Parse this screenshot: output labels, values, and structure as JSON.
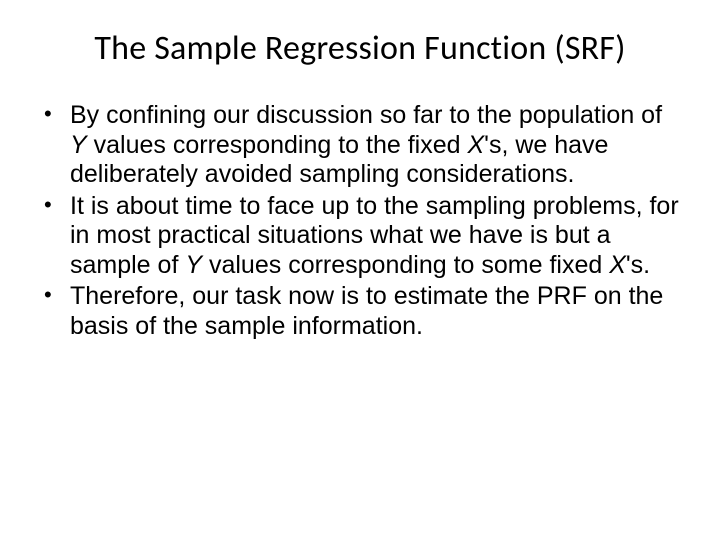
{
  "slide": {
    "background_color": "#ffffff",
    "text_color": "#000000",
    "title": {
      "text": "The Sample Regression Function (SRF)",
      "font_family": "Calibri",
      "font_size_pt": 34,
      "font_weight": "normal",
      "align": "center"
    },
    "body": {
      "font_family": "Arial",
      "font_size_pt": 25,
      "line_height": 1.18,
      "bullet_char": "•",
      "bullets": [
        {
          "runs": [
            {
              "t": "By confining our discussion so far to the population of ",
              "i": false
            },
            {
              "t": "Y",
              "i": true
            },
            {
              "t": " values corresponding to the fixed ",
              "i": false
            },
            {
              "t": "X",
              "i": true
            },
            {
              "t": "'s, we have deliberately avoided sampling considerations.",
              "i": false
            }
          ]
        },
        {
          "runs": [
            {
              "t": "It is about time to face up to the sampling problems, for in most practical situations what we have is but a sample of ",
              "i": false
            },
            {
              "t": "Y",
              "i": true
            },
            {
              "t": " values corresponding to some fixed ",
              "i": false
            },
            {
              "t": "X",
              "i": true
            },
            {
              "t": "'s.",
              "i": false
            }
          ]
        },
        {
          "runs": [
            {
              "t": "Therefore, our task now is to estimate the PRF on the basis of the sample information.",
              "i": false
            }
          ]
        }
      ]
    }
  }
}
